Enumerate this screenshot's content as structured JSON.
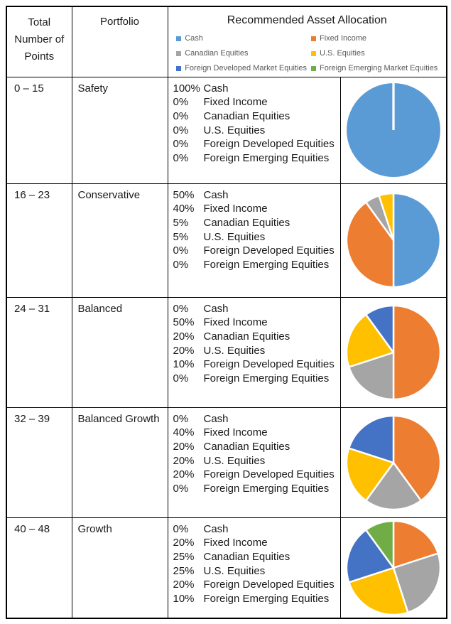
{
  "header": {
    "col_points": "Total Number of Points",
    "col_portfolio": "Portfolio",
    "col_allocation": "Recommended Asset Allocation"
  },
  "legend": [
    {
      "label": "Cash",
      "color": "#5B9BD5"
    },
    {
      "label": "Fixed Income",
      "color": "#ED7D31"
    },
    {
      "label": "Canadian Equities",
      "color": "#A5A5A5"
    },
    {
      "label": "U.S. Equities",
      "color": "#FFC000"
    },
    {
      "label": "Foreign Developed Market Equities",
      "color": "#4472C4"
    },
    {
      "label": "Foreign Emerging Market Equities",
      "color": "#70AD47"
    }
  ],
  "asset_categories": [
    "Cash",
    "Fixed Income",
    "Canadian Equities",
    "U.S. Equities",
    "Foreign Developed Equities",
    "Foreign Emerging Equities"
  ],
  "rows": [
    {
      "points": "0 – 15",
      "portfolio": "Safety",
      "allocations": [
        {
          "pct": "100%",
          "label": "Cash"
        },
        {
          "pct": "0%",
          "label": "Fixed Income"
        },
        {
          "pct": "0%",
          "label": "Canadian Equities"
        },
        {
          "pct": "0%",
          "label": "U.S. Equities"
        },
        {
          "pct": "0%",
          "label": "Foreign Developed Equities"
        },
        {
          "pct": "0%",
          "label": "Foreign Emerging Equities"
        }
      ]
    },
    {
      "points": "16 – 23",
      "portfolio": "Conservative",
      "allocations": [
        {
          "pct": "50%",
          "label": "Cash"
        },
        {
          "pct": "40%",
          "label": "Fixed Income"
        },
        {
          "pct": "5%",
          "label": "Canadian Equities"
        },
        {
          "pct": "5%",
          "label": "U.S. Equities"
        },
        {
          "pct": "0%",
          "label": "Foreign Developed Equities"
        },
        {
          "pct": "0%",
          "label": "Foreign Emerging Equities"
        }
      ]
    },
    {
      "points": "24 – 31",
      "portfolio": "Balanced",
      "allocations": [
        {
          "pct": "0%",
          "label": "Cash"
        },
        {
          "pct": "50%",
          "label": "Fixed Income"
        },
        {
          "pct": "20%",
          "label": "Canadian Equities"
        },
        {
          "pct": "20%",
          "label": "U.S. Equities"
        },
        {
          "pct": "10%",
          "label": "Foreign Developed Equities"
        },
        {
          "pct": "0%",
          "label": "Foreign Emerging Equities"
        }
      ]
    },
    {
      "points": "32 – 39",
      "portfolio": "Balanced Growth",
      "allocations": [
        {
          "pct": "0%",
          "label": "Cash"
        },
        {
          "pct": "40%",
          "label": "Fixed Income"
        },
        {
          "pct": "20%",
          "label": "Canadian Equities"
        },
        {
          "pct": "20%",
          "label": "U.S. Equities"
        },
        {
          "pct": "20%",
          "label": "Foreign Developed Equities"
        },
        {
          "pct": "0%",
          "label": "Foreign Emerging Equities"
        }
      ]
    },
    {
      "points": "40 – 48",
      "portfolio": "Growth",
      "allocations": [
        {
          "pct": "0%",
          "label": "Cash"
        },
        {
          "pct": "20%",
          "label": "Fixed Income"
        },
        {
          "pct": "25%",
          "label": "Canadian Equities"
        },
        {
          "pct": "25%",
          "label": "U.S. Equities"
        },
        {
          "pct": "20%",
          "label": "Foreign Developed Equities"
        },
        {
          "pct": "10%",
          "label": "Foreign Emerging Equities"
        }
      ]
    }
  ],
  "chart_data": [
    {
      "type": "pie",
      "title": "Safety",
      "categories": [
        "Cash",
        "Fixed Income",
        "Canadian Equities",
        "U.S. Equities",
        "Foreign Developed Equities",
        "Foreign Emerging Equities"
      ],
      "values": [
        100,
        0,
        0,
        0,
        0,
        0
      ],
      "colors": [
        "#5B9BD5",
        "#ED7D31",
        "#A5A5A5",
        "#FFC000",
        "#4472C4",
        "#70AD47"
      ],
      "start_angle": "12 o'clock",
      "direction": "clockwise",
      "legend_position": "none"
    },
    {
      "type": "pie",
      "title": "Conservative",
      "categories": [
        "Cash",
        "Fixed Income",
        "Canadian Equities",
        "U.S. Equities",
        "Foreign Developed Equities",
        "Foreign Emerging Equities"
      ],
      "values": [
        50,
        40,
        5,
        5,
        0,
        0
      ],
      "colors": [
        "#5B9BD5",
        "#ED7D31",
        "#A5A5A5",
        "#FFC000",
        "#4472C4",
        "#70AD47"
      ],
      "start_angle": "12 o'clock",
      "direction": "clockwise",
      "legend_position": "none"
    },
    {
      "type": "pie",
      "title": "Balanced",
      "categories": [
        "Cash",
        "Fixed Income",
        "Canadian Equities",
        "U.S. Equities",
        "Foreign Developed Equities",
        "Foreign Emerging Equities"
      ],
      "values": [
        0,
        50,
        20,
        20,
        10,
        0
      ],
      "colors": [
        "#5B9BD5",
        "#ED7D31",
        "#A5A5A5",
        "#FFC000",
        "#4472C4",
        "#70AD47"
      ],
      "start_angle": "12 o'clock",
      "direction": "clockwise",
      "legend_position": "none"
    },
    {
      "type": "pie",
      "title": "Balanced Growth",
      "categories": [
        "Cash",
        "Fixed Income",
        "Canadian Equities",
        "U.S. Equities",
        "Foreign Developed Equities",
        "Foreign Emerging Equities"
      ],
      "values": [
        0,
        40,
        20,
        20,
        20,
        0
      ],
      "colors": [
        "#5B9BD5",
        "#ED7D31",
        "#A5A5A5",
        "#FFC000",
        "#4472C4",
        "#70AD47"
      ],
      "start_angle": "12 o'clock",
      "direction": "clockwise",
      "legend_position": "none"
    },
    {
      "type": "pie",
      "title": "Growth",
      "categories": [
        "Cash",
        "Fixed Income",
        "Canadian Equities",
        "U.S. Equities",
        "Foreign Developed Equities",
        "Foreign Emerging Equities"
      ],
      "values": [
        0,
        20,
        25,
        25,
        20,
        10
      ],
      "colors": [
        "#5B9BD5",
        "#ED7D31",
        "#A5A5A5",
        "#FFC000",
        "#4472C4",
        "#70AD47"
      ],
      "start_angle": "12 o'clock",
      "direction": "clockwise",
      "legend_position": "none"
    }
  ]
}
